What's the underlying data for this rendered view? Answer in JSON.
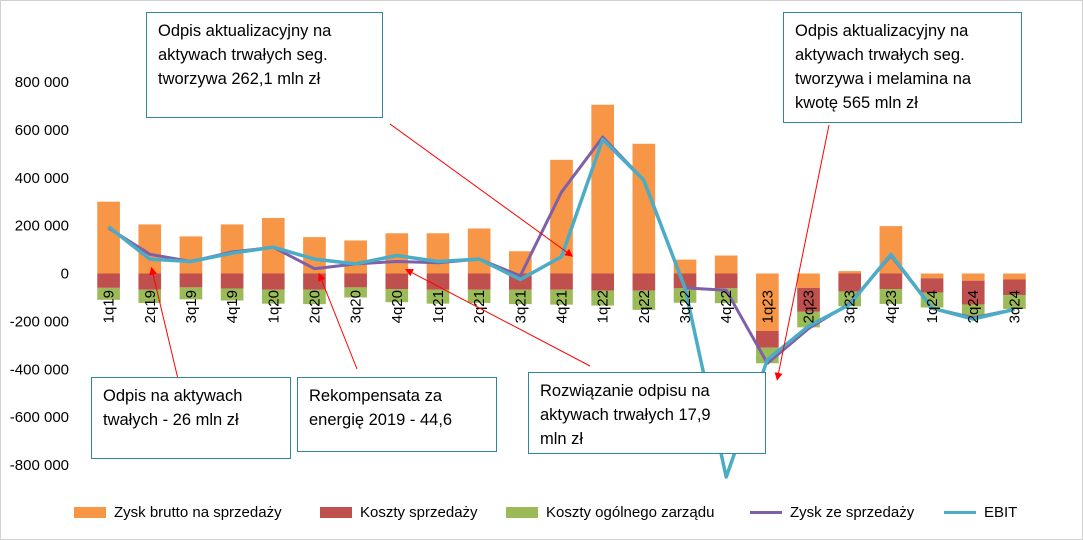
{
  "chart_data": {
    "type": "bar",
    "categories": [
      "1q19",
      "2q19",
      "3q19",
      "4q19",
      "1q20",
      "2q20",
      "3q20",
      "4q20",
      "1q21",
      "2q21",
      "3q21",
      "4q21",
      "1q22",
      "2q22",
      "3q22",
      "4q22",
      "1q23",
      "2q23",
      "3q23",
      "4q23",
      "1q24",
      "2q24",
      "3q24"
    ],
    "ylim": [
      -800000,
      800000
    ],
    "y_ticks": [
      "800 000",
      "600 000",
      "400 000",
      "200 000",
      "0",
      "-200 000",
      "-400 000",
      "-600 000",
      "-800 000"
    ],
    "y_tick_values": [
      800000,
      600000,
      400000,
      200000,
      0,
      -200000,
      -400000,
      -600000,
      -800000
    ],
    "stacked": true,
    "series": [
      {
        "name": "Zysk brutto na sprzedaży",
        "kind": "bar",
        "color": "#f79646",
        "values": [
          300000,
          205000,
          155000,
          205000,
          232000,
          152000,
          138000,
          168000,
          168000,
          188000,
          93000,
          475000,
          705000,
          542000,
          58000,
          75000,
          -240000,
          -60000,
          10000,
          198000,
          -20000,
          -30000,
          -25000
        ]
      },
      {
        "name": "Koszty sprzedaży",
        "kind": "bar",
        "color": "#c0504d",
        "values": [
          -60000,
          -68000,
          -58000,
          -63000,
          -68000,
          -68000,
          -58000,
          -65000,
          -68000,
          -68000,
          -68000,
          -68000,
          -72000,
          -72000,
          -62000,
          -62000,
          -70000,
          -100000,
          -75000,
          -65000,
          -60000,
          -100000,
          -65000
        ]
      },
      {
        "name": "Koszty ogólnego zarządu",
        "kind": "bar",
        "color": "#9bbb59",
        "values": [
          -50000,
          -55000,
          -50000,
          -50000,
          -58000,
          -60000,
          -42000,
          -55000,
          -58000,
          -55000,
          -60000,
          -62000,
          -62000,
          -80000,
          -60000,
          -62000,
          -65000,
          -65000,
          -62000,
          -62000,
          -62000,
          -52000,
          -58000
        ]
      },
      {
        "name": "Zysk ze sprzedaży",
        "kind": "line",
        "color": "#7f5fa8",
        "values": [
          190000,
          80000,
          50000,
          90000,
          110000,
          20000,
          40000,
          50000,
          45000,
          60000,
          -10000,
          340000,
          570000,
          390000,
          -60000,
          -70000,
          -375000,
          -230000,
          -125000,
          75000,
          -145000,
          -185000,
          -150000
        ]
      },
      {
        "name": "EBIT",
        "kind": "line",
        "color": "#4bacc6",
        "values": [
          195000,
          60000,
          50000,
          85000,
          110000,
          60000,
          40000,
          75000,
          50000,
          60000,
          -25000,
          70000,
          560000,
          390000,
          -60000,
          -850000,
          -360000,
          -220000,
          -130000,
          80000,
          -145000,
          -190000,
          -150000
        ]
      }
    ],
    "legend_position": "bottom",
    "annotations": [
      {
        "id": "a1",
        "lines": [
          "Odpis aktualizacyjny na",
          "aktywach trwałych seg.",
          "tworzywa 262,1 mln zł"
        ]
      },
      {
        "id": "a2",
        "lines": [
          "Odpis aktualizacyjny na",
          "aktywach trwałych seg.",
          "tworzywa i melamina na",
          "kwotę 565 mln zł"
        ]
      },
      {
        "id": "a3",
        "lines": [
          "Odpis na aktywach",
          "twałych - 26 mln zł"
        ]
      },
      {
        "id": "a4",
        "lines": [
          "Rekompensata za",
          "energię 2019 - 44,6"
        ]
      },
      {
        "id": "a5",
        "lines": [
          "Rozwiązanie odpisu na",
          "aktywach trwałych 17,9",
          "mln zł"
        ]
      }
    ]
  }
}
